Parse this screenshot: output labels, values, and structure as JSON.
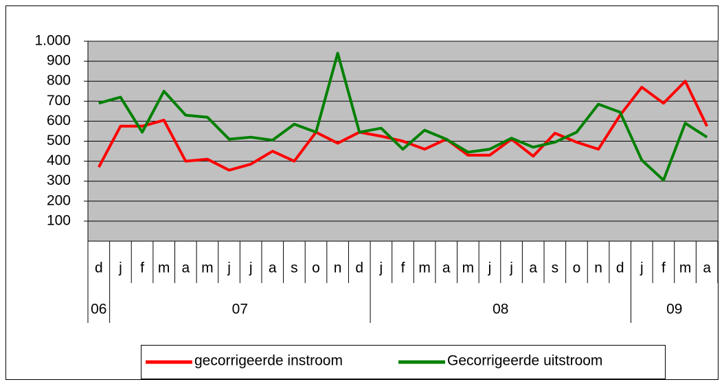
{
  "chart_data": {
    "type": "line",
    "categories": [
      "d",
      "j",
      "f",
      "m",
      "a",
      "m",
      "j",
      "j",
      "a",
      "s",
      "o",
      "n",
      "d",
      "j",
      "f",
      "m",
      "a",
      "m",
      "j",
      "j",
      "a",
      "s",
      "o",
      "n",
      "d",
      "j",
      "f",
      "m",
      "a"
    ],
    "groups": [
      "06",
      "07",
      "08",
      "09"
    ],
    "series": [
      {
        "name": "gecorrigeerde instroom",
        "color": "#ff0000",
        "values": [
          370,
          575,
          575,
          605,
          400,
          410,
          355,
          385,
          450,
          400,
          545,
          490,
          545,
          525,
          500,
          460,
          510,
          430,
          430,
          510,
          425,
          540,
          495,
          460,
          630,
          770,
          690,
          800,
          575
        ]
      },
      {
        "name": "Gecorrigeerde uitstroom",
        "color": "#008000",
        "values": [
          690,
          720,
          545,
          750,
          630,
          620,
          510,
          520,
          505,
          585,
          545,
          940,
          545,
          565,
          460,
          555,
          510,
          445,
          460,
          515,
          470,
          495,
          545,
          685,
          645,
          405,
          305,
          590,
          520
        ]
      }
    ],
    "ylim": [
      0,
      1000
    ],
    "yticks": [
      100,
      200,
      300,
      400,
      500,
      600,
      700,
      800,
      900,
      {
        "value": 1000,
        "label": "1.000"
      }
    ],
    "grid": true,
    "legend": "bottom"
  }
}
